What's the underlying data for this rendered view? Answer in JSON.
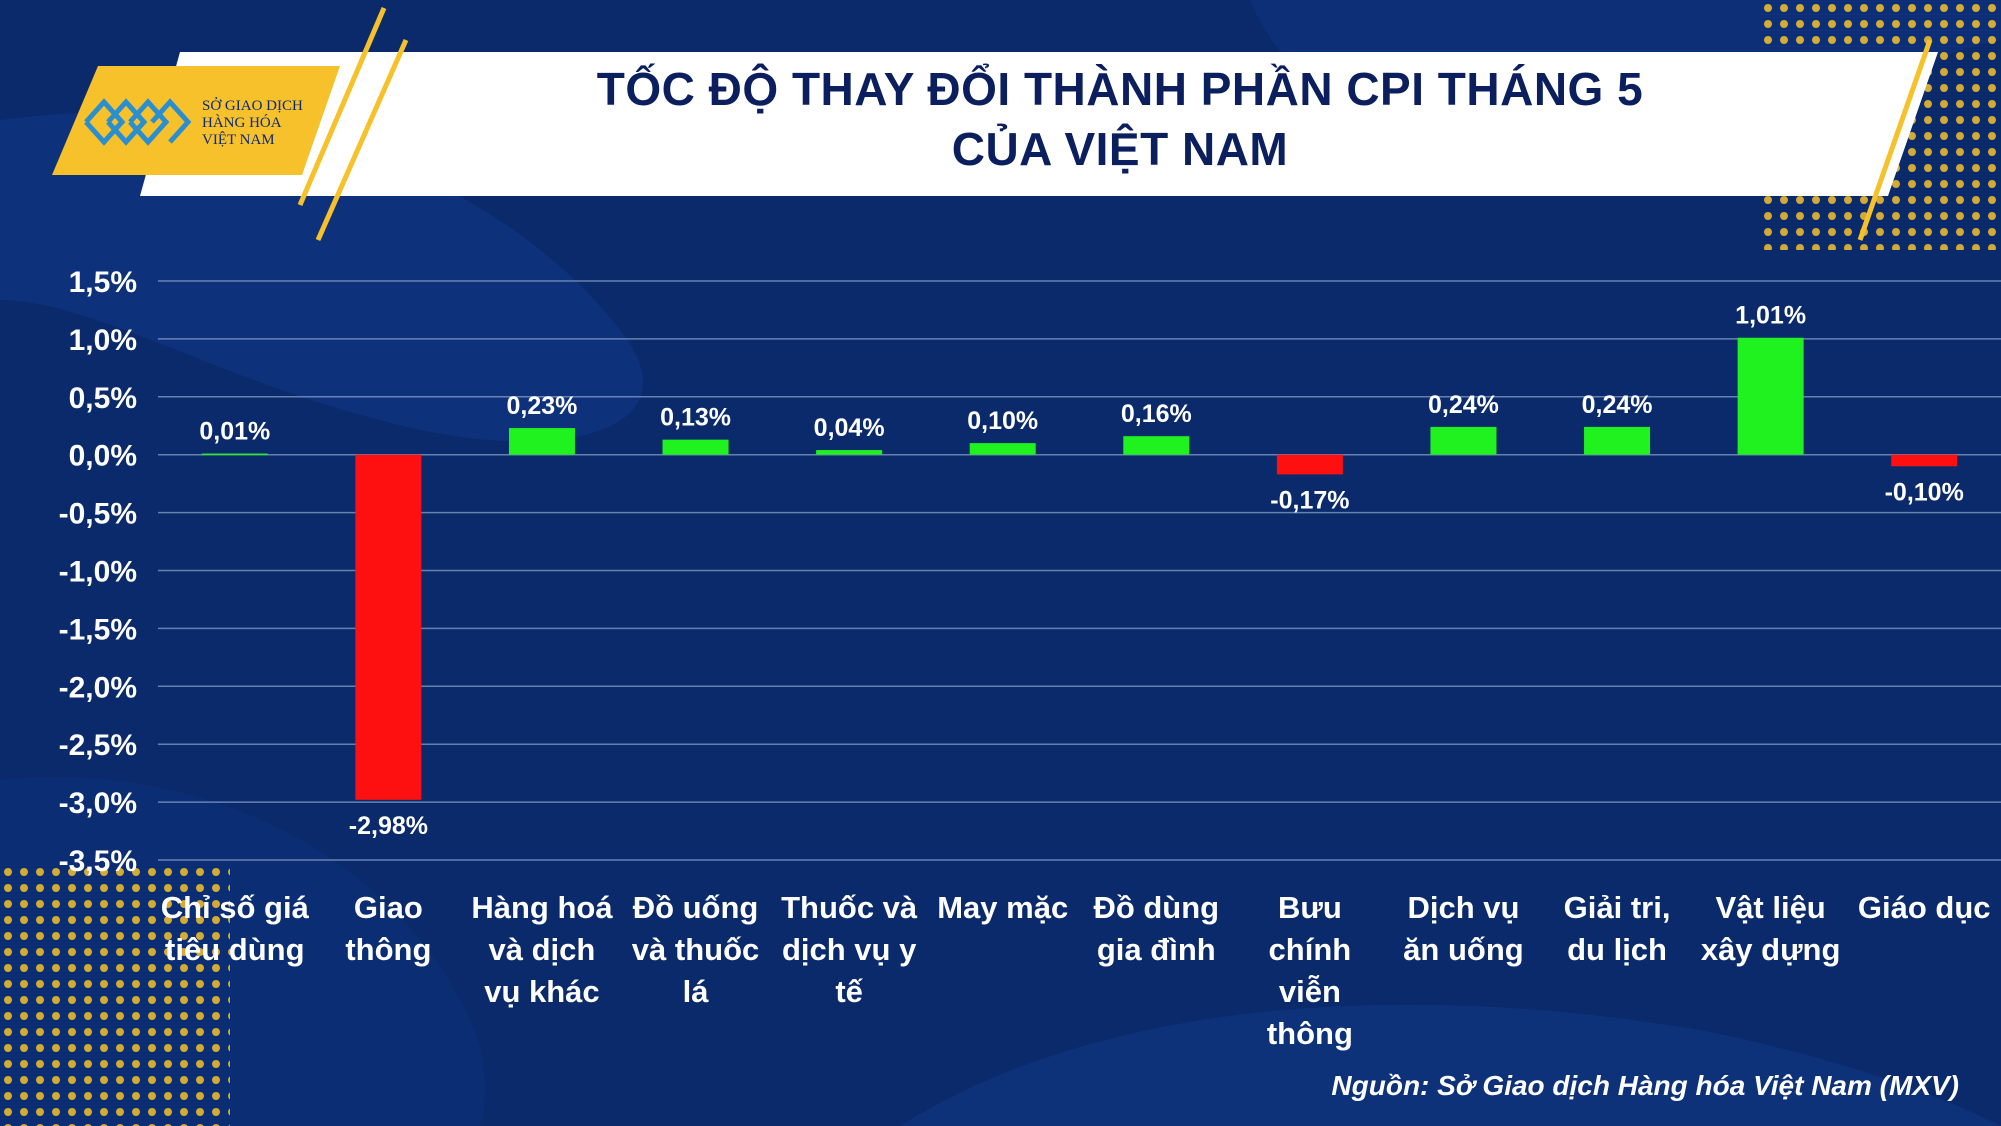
{
  "logo": {
    "lines": [
      "SỞ GIAO DỊCH",
      "HÀNG HÓA",
      "VIỆT NAM"
    ]
  },
  "title": {
    "line1": "TỐC ĐỘ THAY ĐỔI THÀNH PHẦN CPI THÁNG 5",
    "line2": "CỦA VIỆT NAM"
  },
  "source": "Nguồn: Sở Giao dịch Hàng hóa Việt Nam (MXV)",
  "colors": {
    "background": "#0a2a6b",
    "positive": "#1ff21f",
    "negative": "#ff1010",
    "accent": "#f6c12a",
    "title_text": "#0b1f5e"
  },
  "chart_data": {
    "type": "bar",
    "title": "TỐC ĐỘ THAY ĐỔI THÀNH PHẦN CPI THÁNG 5 CỦA VIỆT NAM",
    "xlabel": "",
    "ylabel": "",
    "ylim": [
      -3.5,
      1.5
    ],
    "grid": true,
    "yticks": [
      "1,5%",
      "1,0%",
      "0,5%",
      "0,0%",
      "-0,5%",
      "-1,0%",
      "-1,5%",
      "-2,0%",
      "-2,5%",
      "-3,0%",
      "-3,5%"
    ],
    "ytick_values": [
      1.5,
      1.0,
      0.5,
      0.0,
      -0.5,
      -1.0,
      -1.5,
      -2.0,
      -2.5,
      -3.0,
      -3.5
    ],
    "categories": [
      [
        "Chỉ số giá",
        "tiêu dùng"
      ],
      [
        "Giao",
        "thông"
      ],
      [
        "Hàng hoá",
        "và dịch",
        "vụ khác"
      ],
      [
        "Đồ uống",
        "và thuốc",
        "lá"
      ],
      [
        "Thuốc và",
        "dịch vụ y",
        "tế"
      ],
      [
        "May mặc"
      ],
      [
        "Đồ dùng",
        "gia đình"
      ],
      [
        "Bưu",
        "chính",
        "viễn",
        "thông"
      ],
      [
        "Dịch vụ",
        "ăn uống"
      ],
      [
        "Giải tri,",
        "du lịch"
      ],
      [
        "Vật liệu",
        "xây dựng"
      ],
      [
        "Giáo dục"
      ]
    ],
    "values": [
      0.01,
      -2.98,
      0.23,
      0.13,
      0.04,
      0.1,
      0.16,
      -0.17,
      0.24,
      0.24,
      1.01,
      -0.1
    ],
    "data_labels": [
      "0,01%",
      "-2,98%",
      "0,23%",
      "0,13%",
      "0,04%",
      "0,10%",
      "0,16%",
      "-0,17%",
      "0,24%",
      "0,24%",
      "1,01%",
      "-0,10%"
    ]
  }
}
